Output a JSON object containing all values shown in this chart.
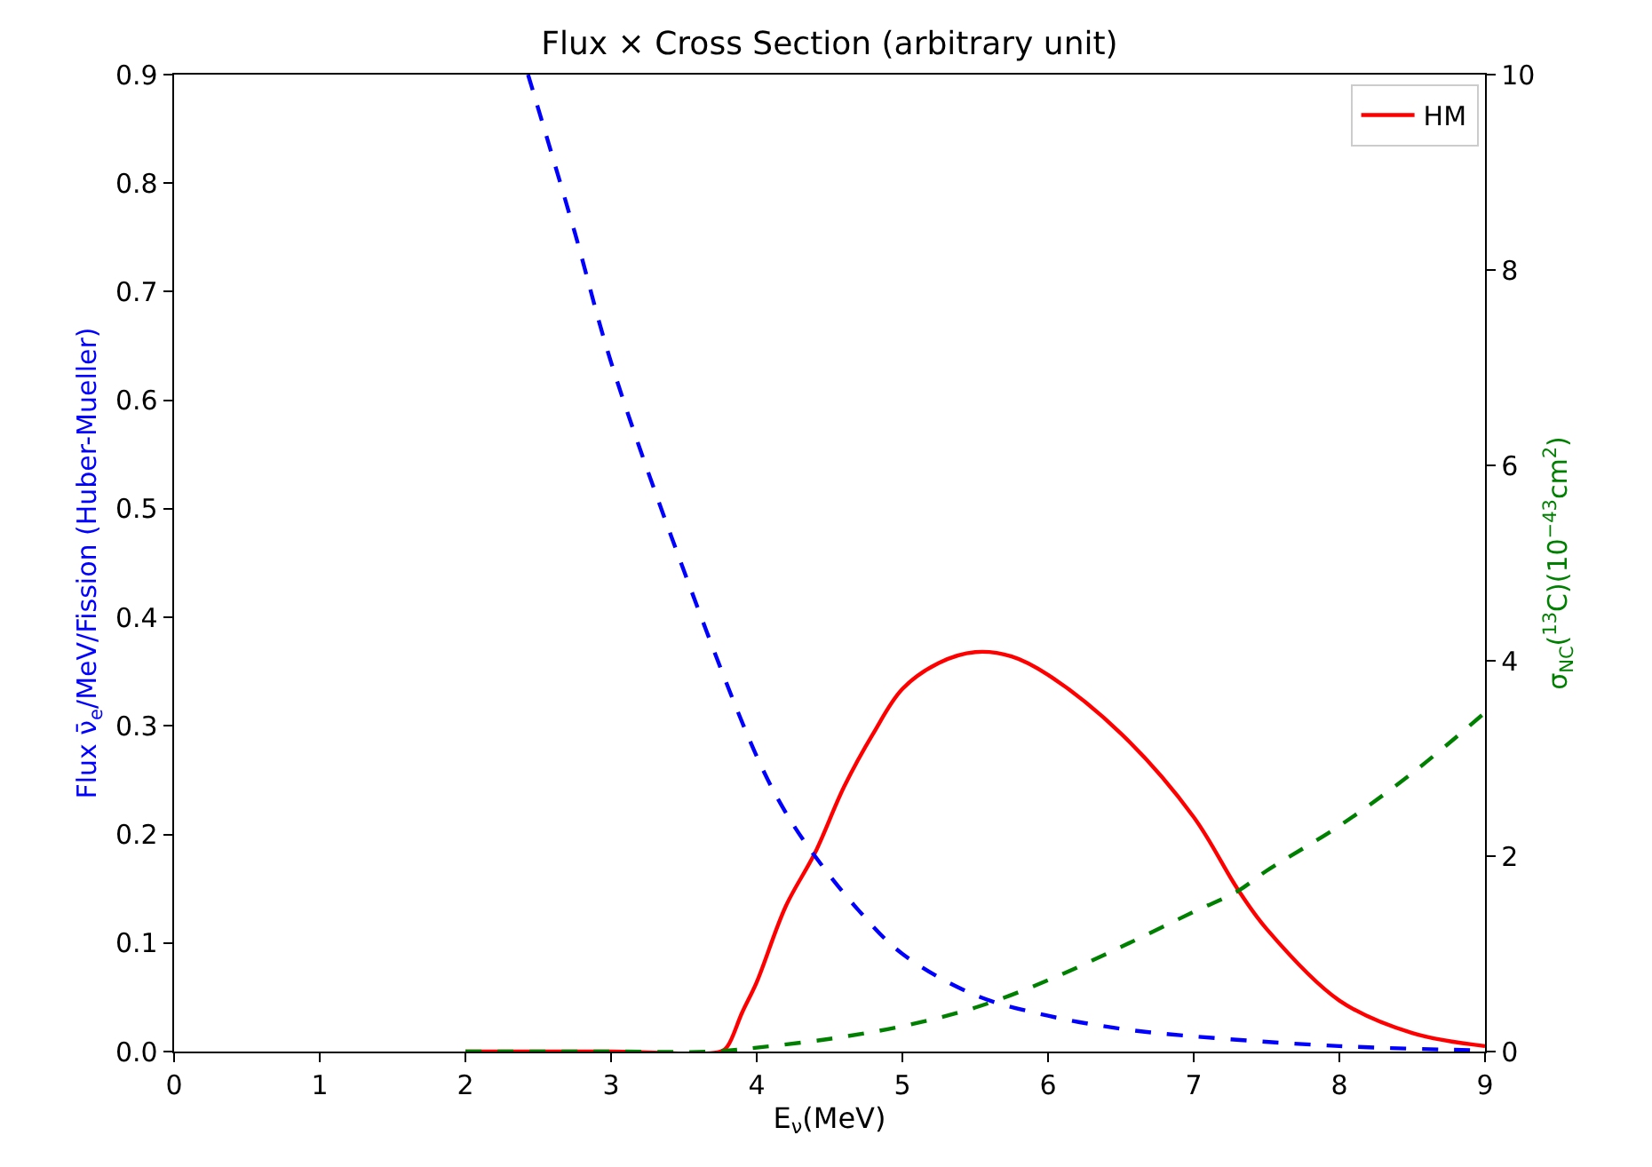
{
  "chart_data": {
    "type": "line",
    "title": "Flux × Cross Section (arbitrary unit)",
    "xlabel": "E$_{ν}$(MeV)",
    "ylabel": "Flux ν̄$_{e}$/MeV/Fission (Huber-Mueller)",
    "y2label": "σ$_{NC}$($^{13}$C)(10$^{−43}$cm$^{2}$)",
    "series": [
      {
        "name": "HM",
        "color": "#ff0000",
        "line_style": "solid",
        "x": [
          2,
          3,
          3.75,
          3.8,
          3.9,
          4,
          4.2,
          4.4,
          4.6,
          4.8,
          5,
          5.25,
          5.5,
          5.75,
          6,
          6.5,
          7,
          7.3,
          7.5,
          8,
          8.5,
          9
        ],
        "values": [
          0,
          0,
          0,
          0.005,
          0.036,
          0.064,
          0.134,
          0.183,
          0.244,
          0.293,
          0.334,
          0.358,
          0.368,
          0.364,
          0.347,
          0.293,
          0.216,
          0.15,
          0.113,
          0.047,
          0.017,
          0.005
        ]
      },
      {
        "color": "#0000ff",
        "line_style": "dashed",
        "x": [
          2.43,
          2.75,
          3,
          3.5,
          4,
          4.2,
          4.4,
          4.7,
          5,
          5.5,
          6,
          6.5,
          7,
          8,
          9
        ],
        "values": [
          0.9,
          0.755,
          0.635,
          0.443,
          0.272,
          0.22,
          0.18,
          0.13,
          0.09,
          0.052,
          0.033,
          0.021,
          0.014,
          0.005,
          0.001
        ]
      },
      {
        "color": "#008000",
        "line_style": "dashed",
        "axis": "y2",
        "x": [
          2,
          3,
          3.7,
          4,
          4.5,
          5,
          5.5,
          6,
          6.5,
          7,
          7.3,
          7.5,
          8,
          8.5,
          9
        ],
        "values": [
          0,
          0,
          0,
          0.04,
          0.13,
          0.26,
          0.45,
          0.73,
          1.07,
          1.43,
          1.64,
          1.85,
          2.31,
          2.85,
          3.47
        ]
      }
    ],
    "xlim": [
      0,
      9
    ],
    "xticks": [
      0,
      1,
      2,
      3,
      4,
      5,
      6,
      7,
      8,
      9
    ],
    "ylim": [
      0,
      0.9
    ],
    "yticks": [
      {
        "value": 0,
        "label": "0.0"
      },
      0.1,
      0.2,
      0.3,
      0.4,
      0.5,
      0.6,
      0.7,
      0.8,
      0.9
    ],
    "y2lim": [
      0,
      10
    ],
    "y2ticks": [
      0,
      2,
      4,
      6,
      8,
      10
    ],
    "grid": false,
    "legend": "top right",
    "marker": "none"
  }
}
